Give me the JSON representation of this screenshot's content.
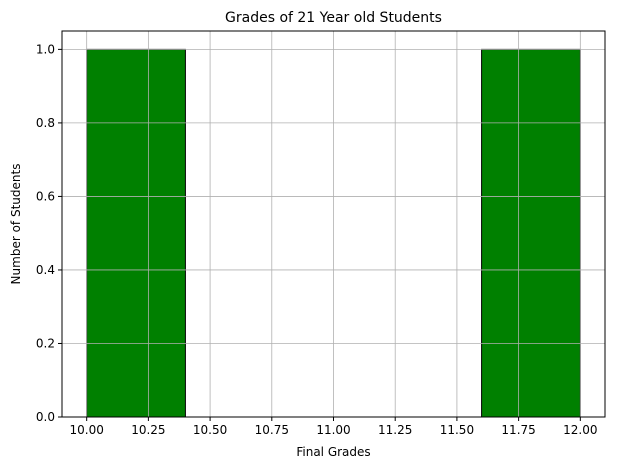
{
  "chart_data": {
    "type": "bar",
    "title": "Grades of 21 Year old Students",
    "xlabel": "Final Grades",
    "ylabel": "Number of Students",
    "xlim": [
      9.9,
      12.1
    ],
    "ylim": [
      0,
      1.05
    ],
    "xticks": [
      "10.00",
      "10.25",
      "10.50",
      "10.75",
      "11.00",
      "11.25",
      "11.50",
      "11.75",
      "12.00"
    ],
    "xtick_values": [
      10.0,
      10.25,
      10.5,
      10.75,
      11.0,
      11.25,
      11.5,
      11.75,
      12.0
    ],
    "yticks": [
      "0.0",
      "0.2",
      "0.4",
      "0.6",
      "0.8",
      "1.0"
    ],
    "ytick_values": [
      0.0,
      0.2,
      0.4,
      0.6,
      0.8,
      1.0
    ],
    "bins": [
      {
        "x0": 10.0,
        "x1": 10.4,
        "value": 1
      },
      {
        "x0": 10.4,
        "x1": 10.8,
        "value": 0
      },
      {
        "x0": 10.8,
        "x1": 11.2,
        "value": 0
      },
      {
        "x0": 11.2,
        "x1": 11.6,
        "value": 0
      },
      {
        "x0": 11.6,
        "x1": 12.0,
        "value": 1
      }
    ],
    "grid": true,
    "bar_color": "#008000",
    "edge_color": "#000000",
    "grid_color": "#b0b0b0"
  }
}
